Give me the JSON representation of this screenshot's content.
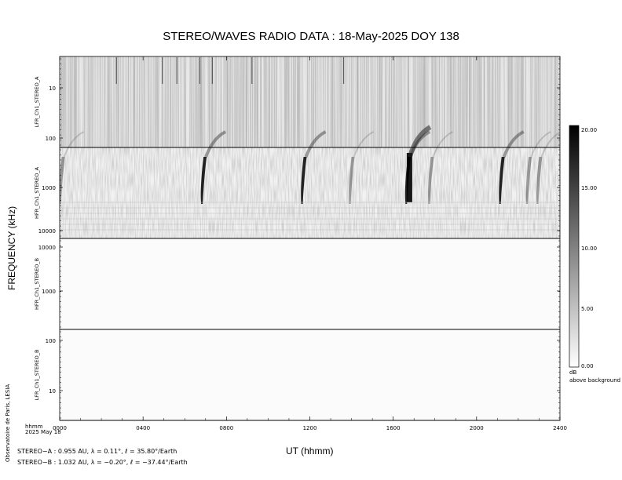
{
  "title": "STEREO/WAVES  RADIO  DATA : 18-May-2025  DOY 138",
  "ylabel": "FREQUENCY (kHz)",
  "xlabel": "UT (hhmm)",
  "x_unit_label": "hhmm",
  "date_label": "2025 May 18",
  "credit": "Observatoire de Paris, LESIA",
  "ephemeris": {
    "stereo_a": "STEREO−A : 0.955 AU, λ = 0.11°, ℓ = 35.80°/Earth",
    "stereo_b": "STEREO−B : 1.032 AU, λ = −0.20°, ℓ = −37.44°/Earth"
  },
  "colorbar": {
    "ticks": [
      "20.00",
      "15.00",
      "10.00",
      "5.00",
      "0.00"
    ],
    "unit": "dB",
    "note": "above background",
    "range": [
      0,
      20
    ],
    "color_low": "#ffffff",
    "color_high": "#000000"
  },
  "chart_data": {
    "type": "heatmap",
    "x_ticks": [
      "0000",
      "0400",
      "0800",
      "1200",
      "1600",
      "2000",
      "2400"
    ],
    "x_range_hours": [
      0,
      24
    ],
    "panels": [
      {
        "label": "LFR_Ch1_STEREO_A",
        "y_ticks": [
          "10",
          "100"
        ],
        "y_scale": "log"
      },
      {
        "label": "HFR_Ch1_STEREO_A",
        "y_ticks": [
          "1000",
          "10000"
        ],
        "y_scale": "log"
      },
      {
        "label": "HFR_Ch1_STEREO_B",
        "y_ticks": [
          "10000",
          "1000"
        ],
        "y_scale": "log"
      },
      {
        "label": "LFR_Ch1_STEREO_B",
        "y_ticks": [
          "100",
          "10"
        ],
        "y_scale": "log"
      }
    ],
    "type_iii_bursts_stereo_a_hours": [
      0.1,
      6.9,
      11.7,
      14.0,
      16.7,
      17.8,
      21.2,
      22.5,
      23.0
    ],
    "intense_burst_hours": [
      6.9,
      11.8,
      16.8,
      21.3
    ]
  }
}
